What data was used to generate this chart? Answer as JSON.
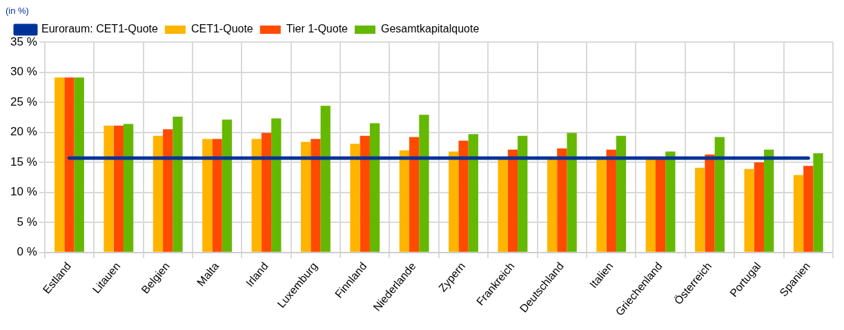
{
  "chart_data": {
    "type": "bar",
    "annotations": [
      "(in %)"
    ],
    "categories": [
      "Estland",
      "Litauen",
      "Belgien",
      "Malta",
      "Irland",
      "Luxemburg",
      "Finnland",
      "Niederlande",
      "Zypern",
      "Frankreich",
      "Deutschland",
      "Italien",
      "Griechenland",
      "Österreich",
      "Portugal",
      "Spanien"
    ],
    "series": [
      {
        "name": "Euroraum: CET1-Quote",
        "type": "line",
        "color": "#003299",
        "values": [
          15.7,
          15.7,
          15.7,
          15.7,
          15.7,
          15.7,
          15.7,
          15.7,
          15.7,
          15.7,
          15.7,
          15.7,
          15.7,
          15.7,
          15.7,
          15.7
        ]
      },
      {
        "name": "CET1-Quote",
        "color": "#ffb400",
        "values": [
          29.1,
          21.1,
          19.4,
          18.9,
          18.9,
          18.4,
          18.1,
          17.0,
          16.8,
          15.5,
          15.5,
          15.5,
          15.5,
          14.1,
          13.9,
          12.9
        ]
      },
      {
        "name": "Tier 1-Quote",
        "color": "#ff4b00",
        "values": [
          29.1,
          21.1,
          20.5,
          18.9,
          19.9,
          18.9,
          19.4,
          19.2,
          18.6,
          17.1,
          17.3,
          17.1,
          15.5,
          16.3,
          15.0,
          14.4
        ]
      },
      {
        "name": "Gesamtkapitalquote",
        "color": "#65b800",
        "values": [
          29.1,
          21.4,
          22.6,
          22.1,
          22.3,
          24.4,
          21.5,
          22.9,
          19.7,
          19.4,
          19.9,
          19.4,
          16.8,
          19.2,
          17.1,
          16.5
        ]
      }
    ],
    "ylim": [
      0,
      35
    ],
    "yticks": [
      {
        "value": 0,
        "label": "0 %"
      },
      {
        "value": 5,
        "label": "5 %"
      },
      {
        "value": 10,
        "label": "10 %"
      },
      {
        "value": 15,
        "label": "15 %"
      },
      {
        "value": 20,
        "label": "20 %"
      },
      {
        "value": 25,
        "label": "25 %"
      },
      {
        "value": 30,
        "label": "30 %"
      },
      {
        "value": 35,
        "label": "35 %"
      }
    ],
    "grid": true,
    "legend": "top left",
    "marker": "none",
    "line_style": "solid"
  }
}
